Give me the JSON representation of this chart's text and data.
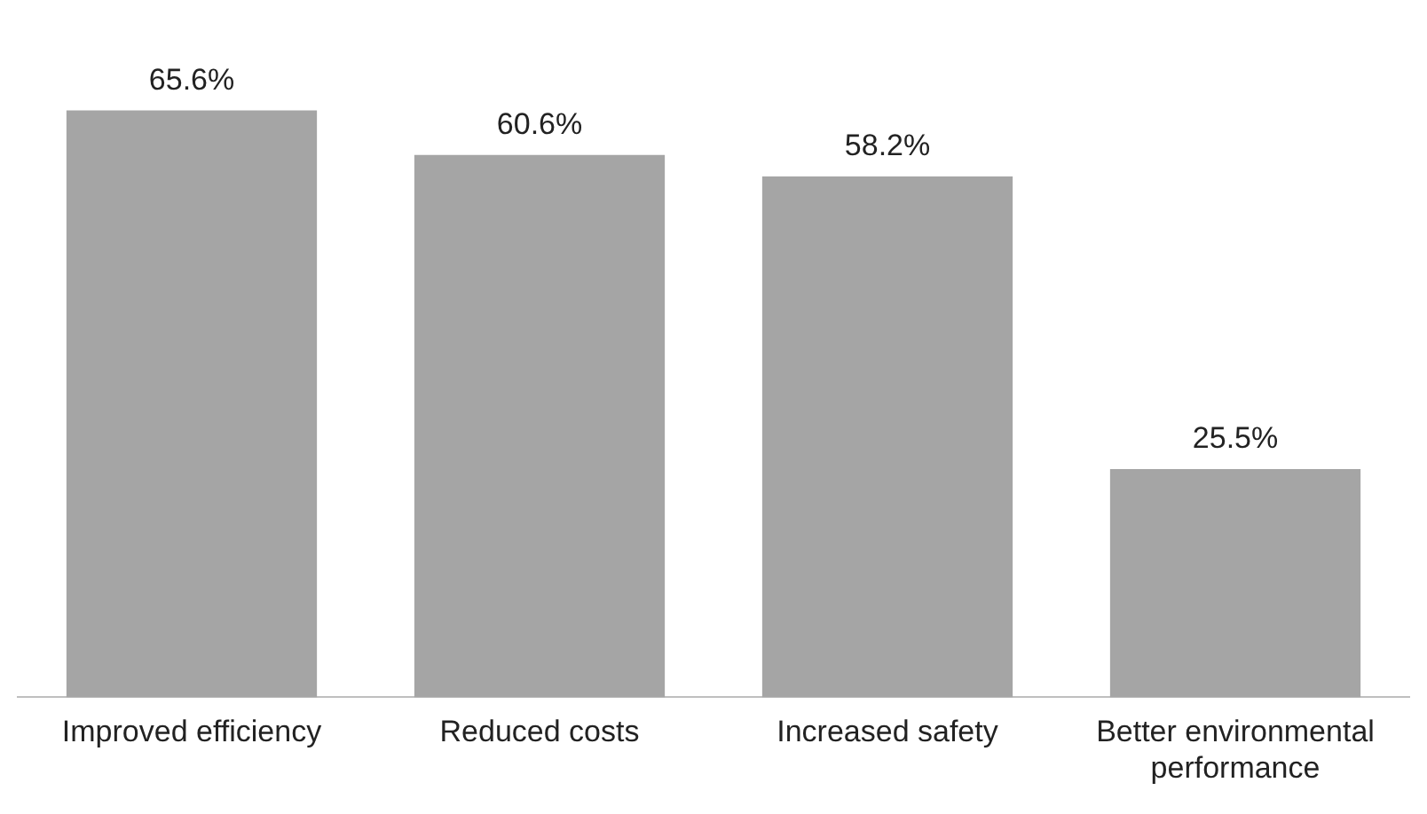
{
  "chart_data": {
    "type": "bar",
    "categories": [
      "Improved efficiency",
      "Reduced costs",
      "Increased safety",
      "Better environmental performance"
    ],
    "values": [
      65.6,
      60.6,
      58.2,
      25.5
    ],
    "value_labels": [
      "65.6%",
      "60.6%",
      "58.2%",
      "25.5%"
    ],
    "color": "#a5a5a5",
    "grid": false,
    "legend": false
  }
}
